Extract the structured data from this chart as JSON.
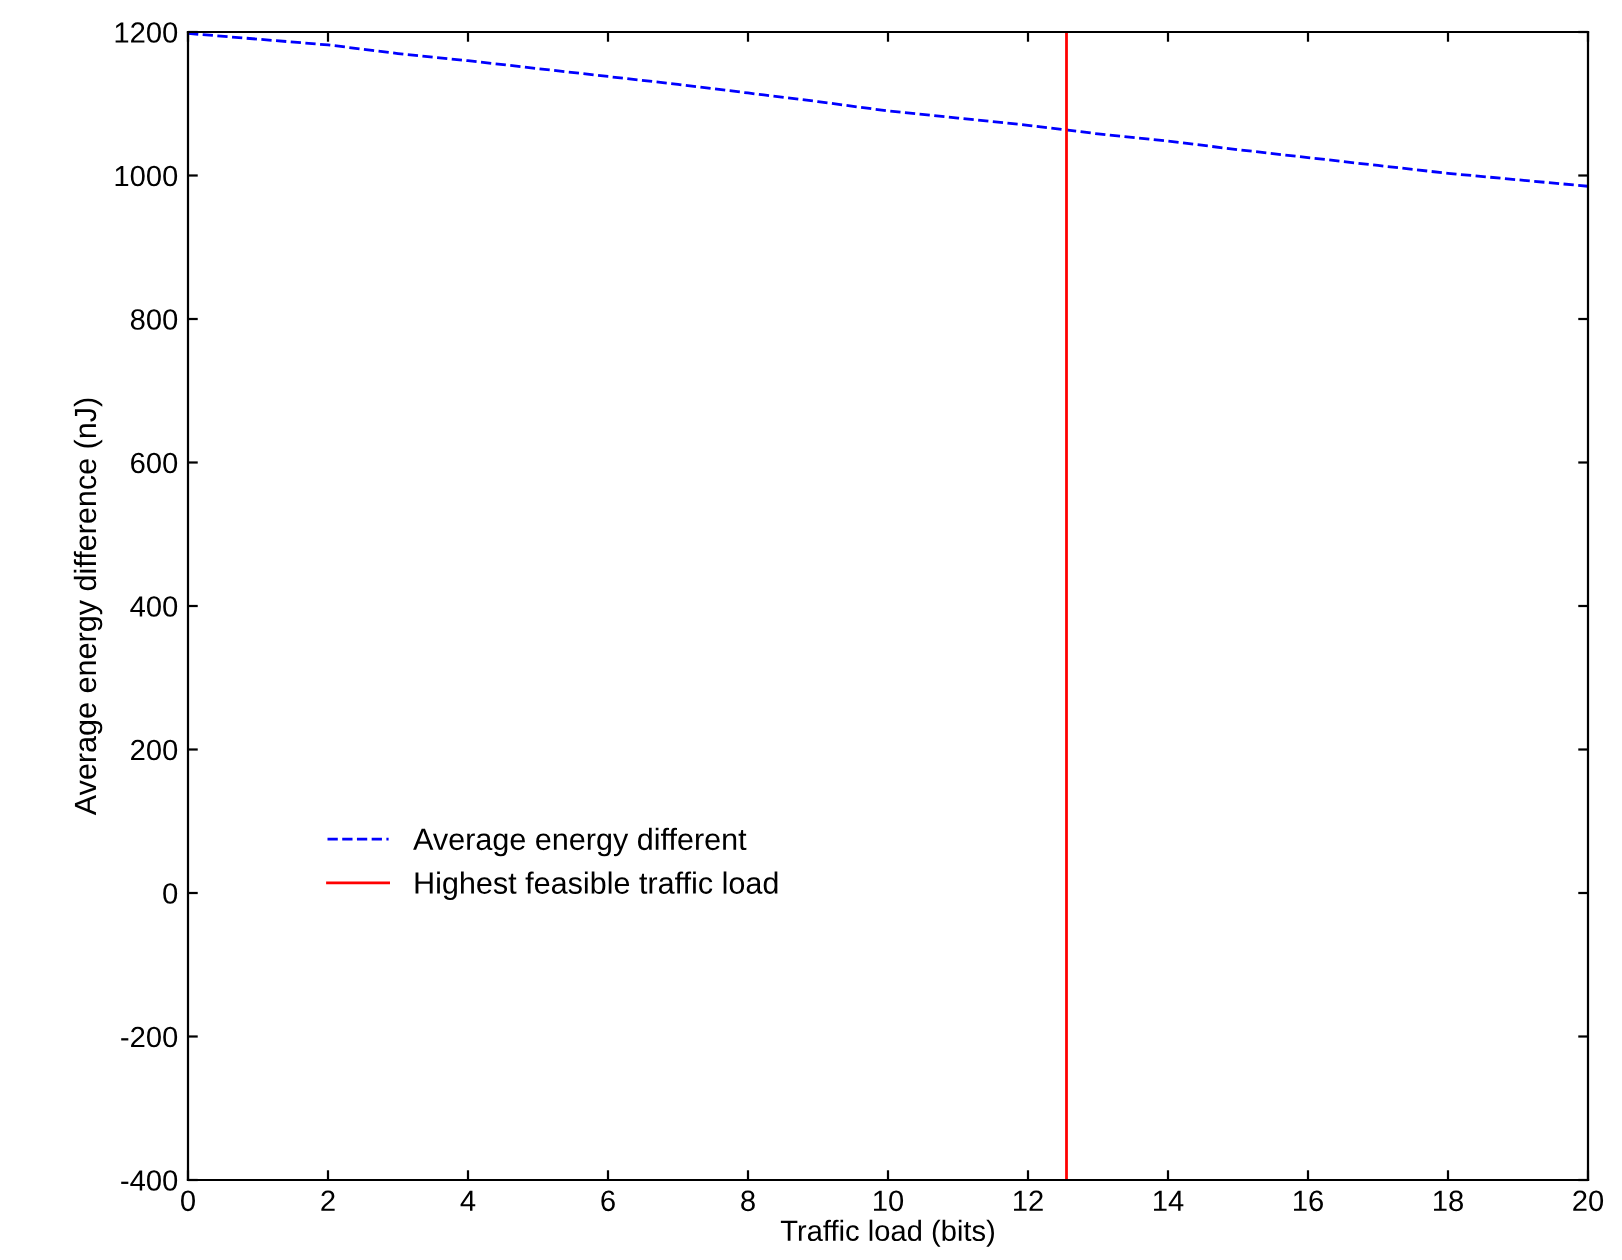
{
  "chart_data": {
    "type": "line",
    "xlabel": "Traffic load (bits)",
    "ylabel": "Average energy difference (nJ)",
    "series": [
      {
        "name": "Average energy different",
        "color": "#0000ff",
        "line_style": "dashed",
        "x": [
          0,
          1,
          2,
          3,
          4,
          5,
          6,
          7,
          8,
          9,
          10,
          11,
          12,
          13,
          14,
          15,
          16,
          17,
          18,
          19,
          20
        ],
        "values": [
          1198,
          1190,
          1182,
          1170,
          1160,
          1149,
          1138,
          1127,
          1115,
          1103,
          1090,
          1080,
          1070,
          1058,
          1048,
          1036,
          1025,
          1014,
          1003,
          994,
          985
        ]
      },
      {
        "name": "Highest feasible traffic load",
        "color": "#ff0000",
        "line_style": "solid",
        "x": [
          12.55,
          12.55
        ],
        "values": [
          -400,
          1200
        ]
      }
    ],
    "xlim": [
      0,
      20
    ],
    "ylim": [
      -400,
      1200
    ],
    "xticks": [
      0,
      2,
      4,
      6,
      8,
      10,
      12,
      14,
      16,
      18,
      20
    ],
    "yticks": [
      -400,
      -200,
      0,
      200,
      400,
      600,
      800,
      1000,
      1200
    ],
    "grid": false,
    "legend": "bottom left"
  }
}
